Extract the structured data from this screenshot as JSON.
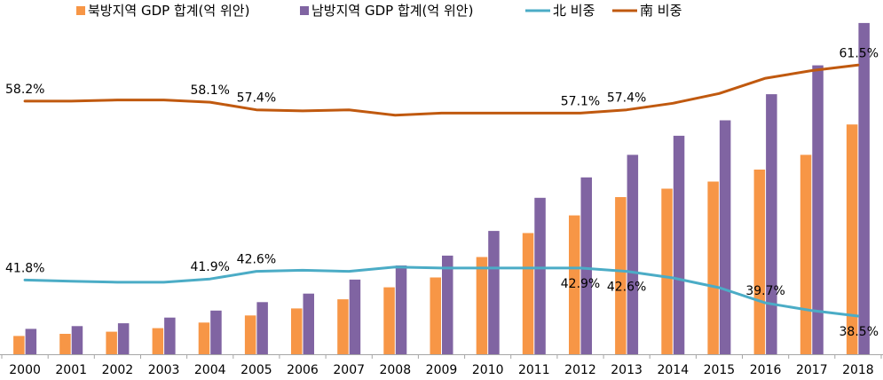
{
  "chart_data": {
    "type": "bar",
    "categories": [
      "2000",
      "2001",
      "2002",
      "2003",
      "2004",
      "2005",
      "2006",
      "2007",
      "2008",
      "2009",
      "2010",
      "2011",
      "2012",
      "2013",
      "2014",
      "2015",
      "2016",
      "2017",
      "2018"
    ],
    "series": [
      {
        "name": "북방지역 GDP 합계(억 위안)",
        "kind": "bar",
        "axis": "left",
        "color": "#F79646",
        "values": [
          26,
          29,
          32,
          37,
          45,
          55,
          65,
          78,
          95,
          109,
          138,
          172,
          197,
          223,
          235,
          245,
          262,
          283,
          326
        ]
      },
      {
        "name": "남방지역 GDP 합계(억 위안)",
        "kind": "bar",
        "axis": "left",
        "color": "#8064A2",
        "values": [
          36,
          40,
          44,
          52,
          62,
          74,
          86,
          106,
          126,
          140,
          175,
          222,
          251,
          283,
          310,
          332,
          369,
          410,
          470
        ]
      },
      {
        "name": "北 비중",
        "kind": "line",
        "axis": "right",
        "color": "#4BACC6",
        "values": [
          41.8,
          41.7,
          41.6,
          41.6,
          41.9,
          42.6,
          42.7,
          42.6,
          43.0,
          42.9,
          42.9,
          42.9,
          42.9,
          42.6,
          42.0,
          41.1,
          39.7,
          39.0,
          38.5
        ]
      },
      {
        "name": "南 비중",
        "kind": "line",
        "axis": "right",
        "color": "#C0590F",
        "values": [
          58.2,
          58.2,
          58.3,
          58.3,
          58.1,
          57.4,
          57.3,
          57.4,
          56.9,
          57.1,
          57.1,
          57.1,
          57.1,
          57.4,
          58.0,
          58.9,
          60.3,
          61.0,
          61.5
        ]
      }
    ],
    "line_labels": [
      {
        "series": 3,
        "index": 0,
        "text": "58.2%",
        "pos": "above"
      },
      {
        "series": 3,
        "index": 4,
        "text": "58.1%",
        "pos": "above"
      },
      {
        "series": 3,
        "index": 5,
        "text": "57.4%",
        "pos": "above"
      },
      {
        "series": 3,
        "index": 12,
        "text": "57.1%",
        "pos": "above"
      },
      {
        "series": 3,
        "index": 13,
        "text": "57.4%",
        "pos": "above"
      },
      {
        "series": 3,
        "index": 18,
        "text": "61.5%",
        "pos": "above"
      },
      {
        "series": 2,
        "index": 0,
        "text": "41.8%",
        "pos": "above"
      },
      {
        "series": 2,
        "index": 4,
        "text": "41.9%",
        "pos": "above"
      },
      {
        "series": 2,
        "index": 5,
        "text": "42.6%",
        "pos": "above"
      },
      {
        "series": 2,
        "index": 12,
        "text": "42.9%",
        "pos": "below"
      },
      {
        "series": 2,
        "index": 13,
        "text": "42.6%",
        "pos": "below"
      },
      {
        "series": 2,
        "index": 16,
        "text": "39.7%",
        "pos": "above"
      },
      {
        "series": 2,
        "index": 18,
        "text": "38.5%",
        "pos": "below"
      }
    ],
    "y_left_range": [
      0,
      480
    ],
    "y_right_range": [
      35,
      66
    ],
    "grid": false,
    "legend_position": "top"
  }
}
